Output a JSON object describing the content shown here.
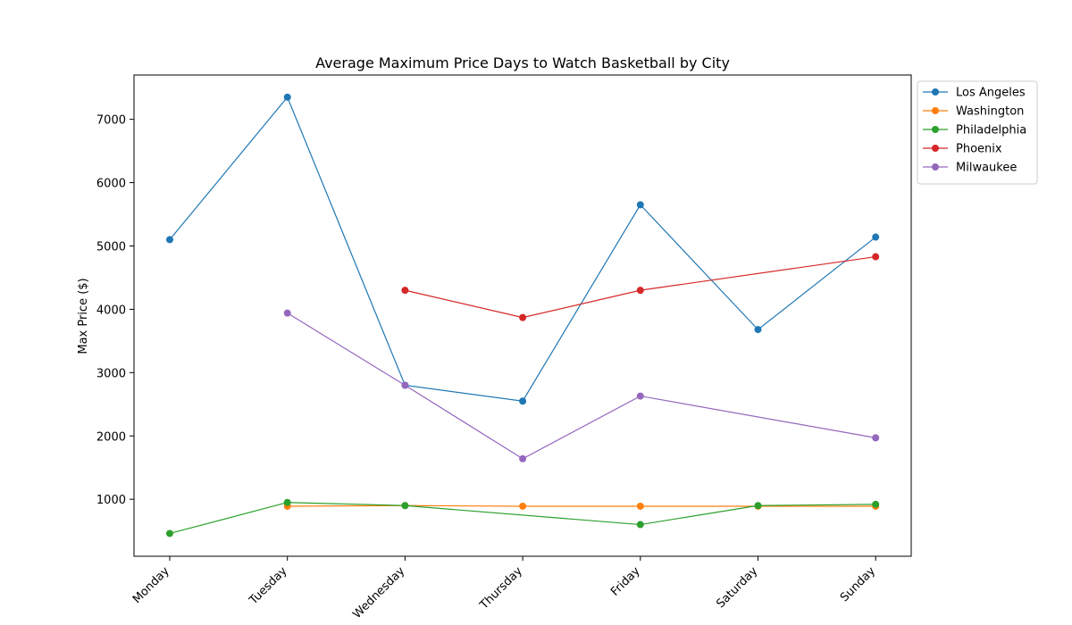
{
  "chart_data": {
    "type": "line",
    "title": "Average Maximum Price Days to Watch Basketball by City",
    "xlabel": "",
    "ylabel": "Max Price ($)",
    "categories": [
      "Monday",
      "Tuesday",
      "Wednesday",
      "Thursday",
      "Friday",
      "Saturday",
      "Sunday"
    ],
    "ylim": [
      100,
      7700
    ],
    "yticks": [
      1000,
      2000,
      3000,
      4000,
      5000,
      6000,
      7000
    ],
    "grid": false,
    "legend_position": "outside-top-right",
    "series": [
      {
        "name": "Los Angeles",
        "color": "#1f77b4",
        "values": [
          5100,
          7350,
          2800,
          2550,
          5650,
          3680,
          5140
        ]
      },
      {
        "name": "Washington",
        "color": "#ff7f0e",
        "values": [
          null,
          890,
          900,
          890,
          890,
          890,
          890
        ]
      },
      {
        "name": "Philadelphia",
        "color": "#2ca02c",
        "values": [
          460,
          950,
          900,
          null,
          600,
          900,
          920
        ]
      },
      {
        "name": "Phoenix",
        "color": "#d62728",
        "values": [
          null,
          null,
          4300,
          3870,
          4300,
          null,
          4830
        ]
      },
      {
        "name": "Milwaukee",
        "color": "#9467bd",
        "values": [
          null,
          3940,
          2800,
          1640,
          2630,
          null,
          1970
        ]
      }
    ]
  }
}
